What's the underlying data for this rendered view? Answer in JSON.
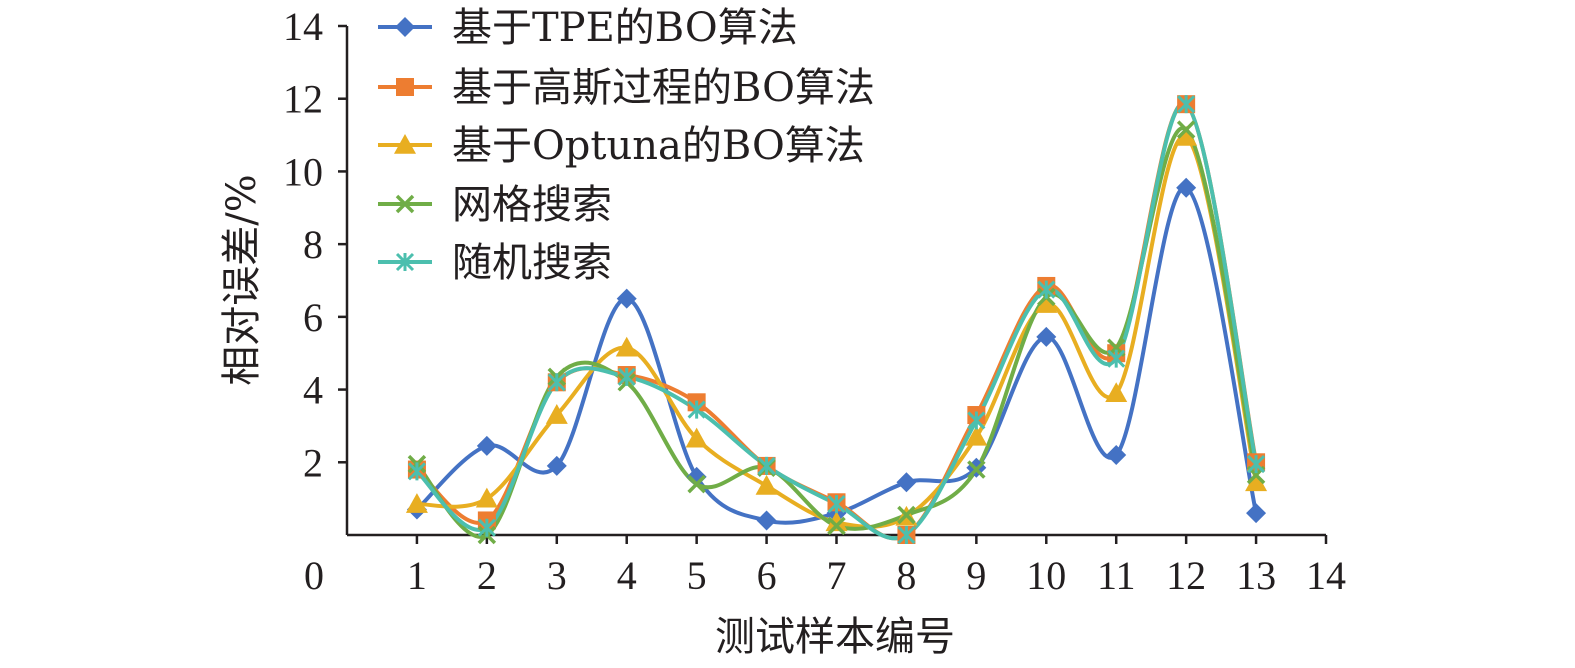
{
  "chart_data": {
    "type": "line",
    "title": "",
    "xlabel": "测试样本编号",
    "ylabel": "相对误差/%",
    "xlim": [
      0,
      14
    ],
    "ylim": [
      0,
      14
    ],
    "x_ticks": [
      1,
      2,
      3,
      4,
      5,
      6,
      7,
      8,
      9,
      10,
      11,
      12,
      13,
      14
    ],
    "y_ticks": [
      2,
      4,
      6,
      8,
      10,
      12,
      14
    ],
    "origin_label": "0",
    "grid": false,
    "smooth": true,
    "legend_position": "top-left",
    "x": [
      1,
      2,
      3,
      4,
      5,
      6,
      7,
      8,
      9,
      10,
      11,
      12,
      13
    ],
    "series": [
      {
        "name": "基于TPE的BO算法",
        "color": "#4472c4",
        "marker": "diamond",
        "values": [
          0.7,
          2.45,
          1.9,
          6.5,
          1.6,
          0.4,
          0.6,
          1.45,
          1.85,
          5.45,
          2.2,
          9.55,
          0.6
        ]
      },
      {
        "name": "基于高斯过程的BO算法",
        "color": "#ed7d31",
        "marker": "square",
        "values": [
          1.8,
          0.4,
          4.2,
          4.4,
          3.65,
          1.9,
          0.9,
          0.0,
          3.3,
          6.85,
          5.0,
          11.85,
          2.0
        ]
      },
      {
        "name": "基于Optuna的BO算法",
        "color": "#e8ae21",
        "marker": "triangle",
        "values": [
          0.85,
          1.0,
          3.3,
          5.15,
          2.65,
          1.35,
          0.35,
          0.5,
          2.7,
          6.35,
          3.9,
          10.95,
          1.45
        ]
      },
      {
        "name": "网格搜索",
        "color": "#70ad47",
        "marker": "x",
        "values": [
          1.95,
          0.0,
          4.35,
          4.2,
          1.4,
          1.85,
          0.25,
          0.55,
          1.8,
          6.55,
          5.15,
          11.15,
          1.65
        ]
      },
      {
        "name": "随机搜索",
        "color": "#4cbfae",
        "marker": "star",
        "values": [
          1.75,
          0.2,
          4.2,
          4.35,
          3.45,
          1.9,
          0.85,
          0.0,
          3.15,
          6.75,
          4.85,
          11.85,
          1.95
        ]
      }
    ]
  }
}
